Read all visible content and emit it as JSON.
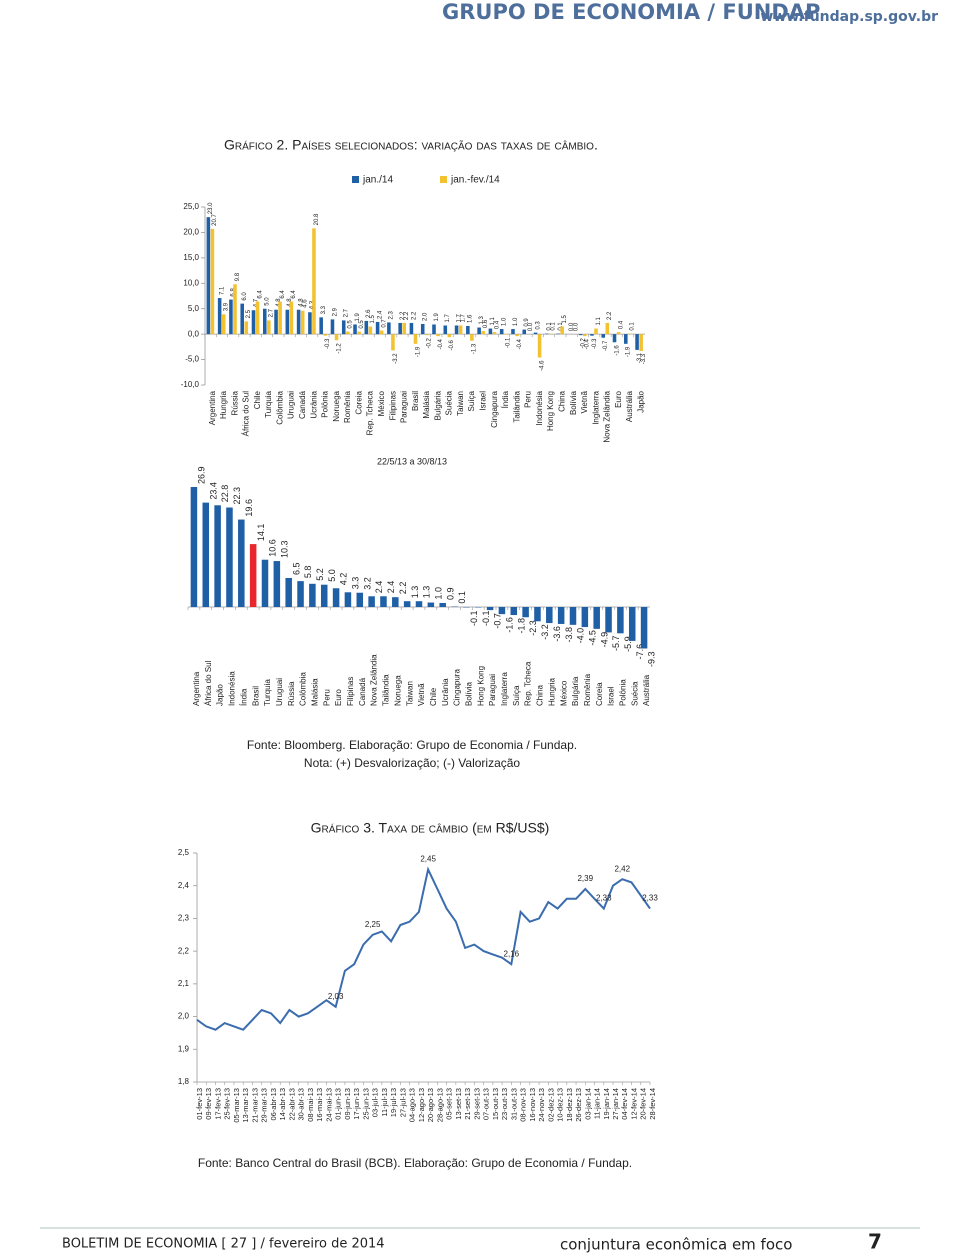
{
  "header": {
    "title": "GRUPO DE ECONOMIA / FUNDAP",
    "url": "www.fundap.sp.gov.br"
  },
  "chart_data": [
    {
      "type": "bar",
      "title": "Gráfico 2. Países selecionados: variação das taxas de câmbio.",
      "categories": [
        "Argentina",
        "Hungria",
        "Rússia",
        "África do Sul",
        "Chile",
        "Turquia",
        "Colômbia",
        "Uruguai",
        "Canadá",
        "Ucrânia",
        "Polônia",
        "Noruega",
        "Romênia",
        "Coreia",
        "Rep. Tcheca",
        "México",
        "Filipinas",
        "Paraguai",
        "Brasil",
        "Malásia",
        "Bulgária",
        "Suécia",
        "Taiwan",
        "Suíça",
        "Israel",
        "Cingapura",
        "Índia",
        "Tailândia",
        "Peru",
        "Indonésia",
        "Hong Kong",
        "China",
        "Bolívia",
        "Vietnã",
        "Inglaterra",
        "Nova Zelândia",
        "Euro",
        "Austrália",
        "Japão"
      ],
      "series": [
        {
          "name": "jan./14",
          "color": "#1f5fa6",
          "values": [
            23.0,
            7.1,
            6.8,
            6.0,
            4.7,
            5.0,
            4.8,
            4.8,
            4.8,
            4.3,
            3.3,
            2.9,
            2.7,
            1.9,
            2.6,
            2.4,
            2.3,
            2.2,
            2.2,
            2.0,
            1.9,
            1.7,
            1.7,
            1.6,
            1.3,
            1.1,
            1.0,
            1.0,
            0.9,
            0.3,
            0.1,
            0.1,
            0.0,
            -0.2,
            -0.3,
            -0.7,
            -1.6,
            -1.9,
            -3.1
          ],
          "value_labels": [
            "23.0",
            "7.1",
            "6.8",
            "6.0",
            "4.7",
            "5.0",
            "4.8",
            "4.8",
            "4.8",
            "4.3",
            "3.3",
            "2.9",
            "2.7",
            "1.9",
            "2.6",
            "2.4",
            "2.3",
            "2.2",
            "2.2",
            "2.0",
            "1.9",
            "1.7",
            "1.7",
            "1.6",
            "1.3",
            "1.1",
            "1.0",
            "1.0",
            "0.9",
            "0.3",
            "0.1",
            "0.1",
            "0.0",
            "-0.2",
            "-0.3",
            "-0.7",
            "-1.6",
            "-1.9",
            "-3.1"
          ]
        },
        {
          "name": "jan.-fev./14",
          "color": "#f2c230",
          "values": [
            20.7,
            3.9,
            9.8,
            2.5,
            6.4,
            2.7,
            6.4,
            6.4,
            4.6,
            20.8,
            -0.3,
            -1.2,
            0.5,
            0.5,
            1.5,
            0.7,
            -3.2,
            2.2,
            -1.9,
            -0.2,
            -0.4,
            -0.6,
            1.7,
            -1.3,
            0.6,
            0.4,
            -0.1,
            -0.4,
            0.0,
            -4.6,
            0.1,
            1.5,
            0.0,
            -0.4,
            1.1,
            2.2,
            0.4,
            0.1,
            -3.3
          ],
          "value_labels": [
            "20.7",
            "3.9",
            "9.8",
            "2.5",
            "6.4",
            "2.7",
            "6.4",
            "6.4",
            "4.6",
            "20.8",
            "-0.3",
            "-1.2",
            "0.5",
            "0.5",
            "1.5",
            "0.7",
            "-3.2",
            "2.2",
            "-1.9",
            "-0.2",
            "-0.4",
            "-0.6",
            "1.7",
            "-1.3",
            "0.6",
            "0.4",
            "-0.1",
            "-0.4",
            "0.0",
            "-4.6",
            "0.1",
            "1.5",
            "0.0",
            "-0.4",
            "1.1",
            "2.2",
            "0.4",
            "0.1",
            "-3.3"
          ]
        }
      ],
      "ylim": [
        -10,
        25
      ],
      "yticks": [
        {
          "value": 25,
          "label": "25,0"
        },
        {
          "value": 20,
          "label": "20,0"
        },
        {
          "value": 15,
          "label": "15,0"
        },
        {
          "value": 10,
          "label": "10,0"
        },
        {
          "value": 5,
          "label": "5,0"
        },
        {
          "value": 0,
          "label": "0,0"
        },
        {
          "value": -5,
          "label": "-5,0"
        },
        {
          "value": -10,
          "label": "-10,0"
        }
      ],
      "legend": "top"
    },
    {
      "type": "bar",
      "subtitle": "22/5/13 a 30/8/13",
      "categories": [
        "Argentina",
        "África do Sul",
        "Japão",
        "Indonésia",
        "Índia",
        "Brasil",
        "Turquia",
        "Uruguai",
        "Rússia",
        "Colômbia",
        "Malásia",
        "Peru",
        "Euro",
        "Filipinas",
        "Canadá",
        "Nova Zelândia",
        "Tailândia",
        "Noruega",
        "Taiwan",
        "Vietnã",
        "Chile",
        "Ucrânia",
        "Cingapura",
        "Bolívia",
        "Hong Kong",
        "Paraguai",
        "Inglaterra",
        "Suíça",
        "Rep. Tcheca",
        "China",
        "Hungria",
        "México",
        "Bulgária",
        "Romênia",
        "Coreia",
        "Israel",
        "Polônia",
        "Suécia",
        "Austrália"
      ],
      "values": [
        26.9,
        23.4,
        22.8,
        22.3,
        19.6,
        14.1,
        10.6,
        10.3,
        6.5,
        5.8,
        5.2,
        5.0,
        4.2,
        3.3,
        3.2,
        2.4,
        2.4,
        2.2,
        1.3,
        1.3,
        1.0,
        0.9,
        0.1,
        -0.1,
        -0.1,
        -0.7,
        -1.6,
        -1.8,
        -2.3,
        -3.2,
        -3.6,
        -3.8,
        -4.0,
        -4.5,
        -4.9,
        -5.7,
        -5.9,
        -7.6,
        -9.3
      ],
      "value_labels": [
        "26.9",
        "23.4",
        "22.8",
        "22.3",
        "19.6",
        "14.1",
        "10.6",
        "10.3",
        "6.5",
        "5.8",
        "5.2",
        "5.0",
        "4.2",
        "3.3",
        "3.2",
        "2.4",
        "2.4",
        "2.2",
        "1.3",
        "1.3",
        "1.0",
        "0.9",
        "0.1",
        "-0.1",
        "-0.1",
        "-0.7",
        "-1.6",
        "-1.8",
        "-2.3",
        "-3.2",
        "-3.6",
        "-3.8",
        "-4.0",
        "-4.5",
        "-4.9",
        "-5.7",
        "-5.9",
        "-7.6",
        "-9.3"
      ],
      "colors": [
        "#1f5fa6",
        "#1f5fa6",
        "#1f5fa6",
        "#1f5fa6",
        "#1f5fa6",
        "#e8262b",
        "#1f5fa6",
        "#1f5fa6",
        "#1f5fa6",
        "#1f5fa6",
        "#1f5fa6",
        "#1f5fa6",
        "#1f5fa6",
        "#1f5fa6",
        "#1f5fa6",
        "#1f5fa6",
        "#1f5fa6",
        "#1f5fa6",
        "#1f5fa6",
        "#1f5fa6",
        "#1f5fa6",
        "#1f5fa6",
        "#1f5fa6",
        "#1f5fa6",
        "#1f5fa6",
        "#1f5fa6",
        "#1f5fa6",
        "#1f5fa6",
        "#1f5fa6",
        "#1f5fa6",
        "#1f5fa6",
        "#1f5fa6",
        "#1f5fa6",
        "#1f5fa6",
        "#1f5fa6",
        "#1f5fa6",
        "#1f5fa6",
        "#1f5fa6",
        "#1f5fa6"
      ],
      "source": "Fonte: Bloomberg. Elaboração: Grupo de Economia / Fundap.",
      "note": "Nota: (+) Desvalorização; (-) Valorização"
    },
    {
      "type": "line",
      "title": "Gráfico 3. Taxa de câmbio (em R$/US$)",
      "categories": [
        "01-fev-13",
        "09-fev-13",
        "17-fev-13",
        "25-fev-13",
        "05-mar-13",
        "13-mar-13",
        "21-mar-13",
        "29-mar-13",
        "06-abr-13",
        "14-abr-13",
        "22-abr-13",
        "30-abr-13",
        "08-mai-13",
        "16-mai-13",
        "24-mai-13",
        "01-jun-13",
        "09-jun-13",
        "17-jun-13",
        "25-jun-13",
        "03-jul-13",
        "11-jul-13",
        "19-jul-13",
        "27-jul-13",
        "04-ago-13",
        "12-ago-13",
        "20-ago-13",
        "28-ago-13",
        "05-set-13",
        "13-set-13",
        "21-set-13",
        "29-set-13",
        "07-out-13",
        "15-out-13",
        "23-out-13",
        "31-out-13",
        "08-nov-13",
        "16-nov-13",
        "24-nov-13",
        "02-dez-13",
        "10-dez-13",
        "18-dez-13",
        "26-dez-13",
        "03-jan-14",
        "11-jan-14",
        "19-jan-14",
        "27-jan-14",
        "04-fev-14",
        "12-fev-14",
        "20-fev-14",
        "28-fev-14"
      ],
      "series": [
        {
          "name": "R$/US$",
          "color": "#3a6cae",
          "values": [
            1.99,
            1.97,
            1.96,
            1.98,
            1.97,
            1.96,
            1.99,
            2.02,
            2.01,
            1.98,
            2.02,
            2.0,
            2.01,
            2.03,
            2.05,
            2.03,
            2.14,
            2.16,
            2.22,
            2.25,
            2.26,
            2.23,
            2.28,
            2.29,
            2.32,
            2.45,
            2.39,
            2.33,
            2.29,
            2.21,
            2.22,
            2.2,
            2.19,
            2.18,
            2.16,
            2.32,
            2.29,
            2.3,
            2.35,
            2.33,
            2.36,
            2.36,
            2.39,
            2.36,
            2.33,
            2.4,
            2.42,
            2.41,
            2.37,
            2.33
          ]
        }
      ],
      "ylim": [
        1.8,
        2.5
      ],
      "yticks": [
        {
          "value": 2.5,
          "label": "2,5"
        },
        {
          "value": 2.4,
          "label": "2,4"
        },
        {
          "value": 2.3,
          "label": "2,3"
        },
        {
          "value": 2.2,
          "label": "2,2"
        },
        {
          "value": 2.1,
          "label": "2,1"
        },
        {
          "value": 2.0,
          "label": "2,0"
        },
        {
          "value": 1.9,
          "label": "1,9"
        },
        {
          "value": 1.8,
          "label": "1,8"
        }
      ],
      "annotations": [
        {
          "x": "01-jun-13",
          "value": 2.03,
          "label": "2,03"
        },
        {
          "x": "03-jul-13",
          "value": 2.25,
          "label": "2,25"
        },
        {
          "x": "20-ago-13",
          "value": 2.45,
          "label": "2,45"
        },
        {
          "x": "31-out-13",
          "value": 2.16,
          "label": "2,16"
        },
        {
          "x": "03-jan-14",
          "value": 2.39,
          "label": "2,39"
        },
        {
          "x": "19-jan-14",
          "value": 2.33,
          "label": "2,33"
        },
        {
          "x": "04-fev-14",
          "value": 2.42,
          "label": "2,42"
        },
        {
          "x": "28-fev-14",
          "value": 2.33,
          "label": "2,33"
        }
      ],
      "source": "Fonte: Banco Central do Brasil (BCB). Elaboração: Grupo de Economia / Fundap."
    }
  ],
  "footer": {
    "bulletin": "BOLETIM DE ECONOMIA [ 27 ] / fevereiro de 2014",
    "section": "conjuntura econômica em foco",
    "page": "7"
  }
}
